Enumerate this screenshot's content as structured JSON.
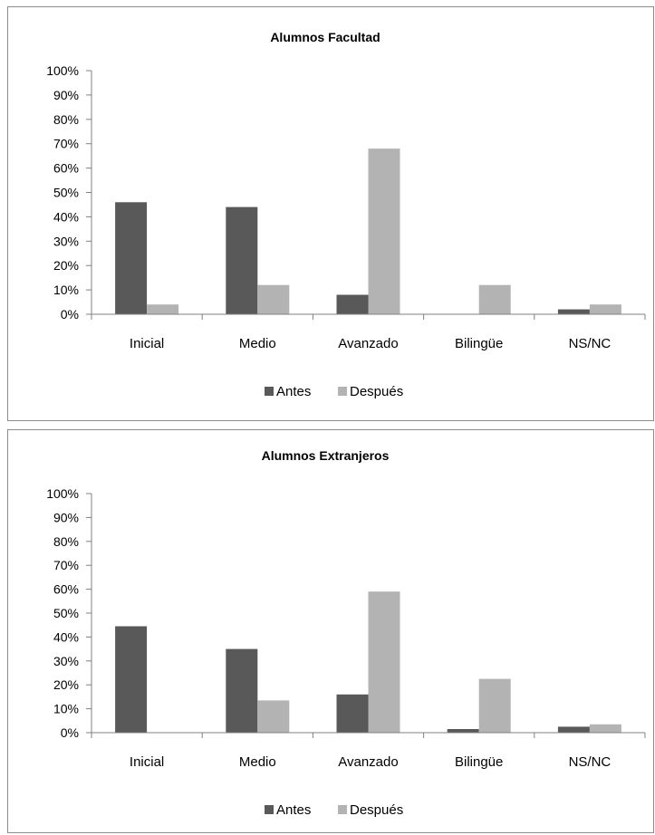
{
  "colors": {
    "antes": "#595959",
    "despues": "#b3b3b3",
    "axis": "#808080"
  },
  "chart_data": [
    {
      "type": "bar",
      "title": "Alumnos Facultad",
      "categories": [
        "Inicial",
        "Medio",
        "Avanzado",
        "Bilingüe",
        "NS/NC"
      ],
      "series": [
        {
          "name": "Antes",
          "values": [
            46,
            44,
            8,
            0,
            2
          ]
        },
        {
          "name": "Después",
          "values": [
            4,
            12,
            68,
            12,
            4
          ]
        }
      ],
      "ylim": [
        0,
        100
      ],
      "yticks": [
        "0%",
        "10%",
        "20%",
        "30%",
        "40%",
        "50%",
        "60%",
        "70%",
        "80%",
        "90%",
        "100%"
      ],
      "grid": false,
      "legend": "bottom"
    },
    {
      "type": "bar",
      "title": "Alumnos Extranjeros",
      "categories": [
        "Inicial",
        "Medio",
        "Avanzado",
        "Bilingüe",
        "NS/NC"
      ],
      "series": [
        {
          "name": "Antes",
          "values": [
            44.5,
            35,
            16,
            1.5,
            2.5
          ]
        },
        {
          "name": "Después",
          "values": [
            0,
            13.5,
            59,
            22.5,
            3.5
          ]
        }
      ],
      "ylim": [
        0,
        100
      ],
      "yticks": [
        "0%",
        "10%",
        "20%",
        "30%",
        "40%",
        "50%",
        "60%",
        "70%",
        "80%",
        "90%",
        "100%"
      ],
      "grid": false,
      "legend": "bottom"
    }
  ]
}
